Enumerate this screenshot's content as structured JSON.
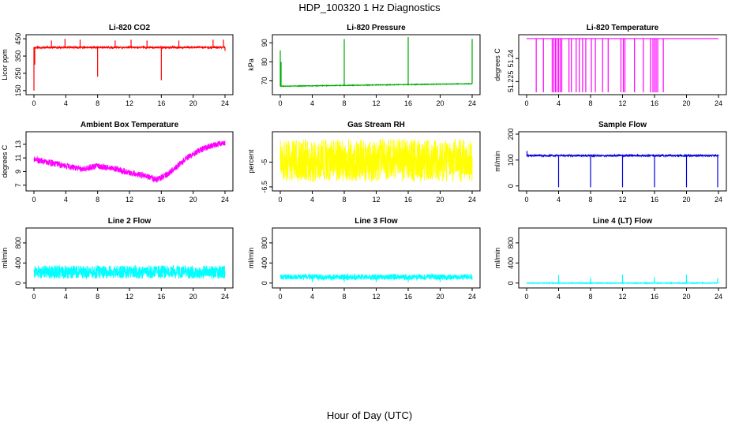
{
  "figure": {
    "title": "HDP_100320  1 Hz Diagnostics",
    "xlabel": "Hour of Day (UTC)"
  },
  "chart_data": [
    {
      "type": "line",
      "title": "Li-820 CO2",
      "ylabel": "Licor ppm",
      "color": "#ff0000",
      "xlim": [
        0,
        24
      ],
      "ylim": [
        140,
        460
      ],
      "xticks": [
        0,
        4,
        8,
        12,
        16,
        20,
        24
      ],
      "yticks": [
        150,
        250,
        350,
        450
      ],
      "baseline": 400,
      "noise": 10,
      "trend": [],
      "x": [
        0,
        0.1,
        0.2,
        2.2,
        3.9,
        5.8,
        8.0,
        10.2,
        12.2,
        14.2,
        16.0,
        18.2,
        22.5,
        23.8,
        24.0
      ],
      "y": [
        150,
        300,
        400,
        440,
        450,
        445,
        230,
        440,
        445,
        440,
        210,
        440,
        445,
        445,
        380
      ]
    },
    {
      "type": "line",
      "title": "Li-820 Pressure",
      "ylabel": "kPa",
      "color": "#00aa00",
      "xlim": [
        0,
        24
      ],
      "ylim": [
        64,
        93
      ],
      "xticks": [
        0,
        4,
        8,
        12,
        16,
        20,
        24
      ],
      "yticks": [
        70,
        80,
        90
      ],
      "baseline": 67.5,
      "noise": 0.3,
      "trend": [
        [
          0,
          67.2
        ],
        [
          24,
          68.5
        ]
      ],
      "x": [
        0,
        0.1,
        8.0,
        16.0,
        24.0
      ],
      "y": [
        86,
        80,
        92,
        93,
        92
      ]
    },
    {
      "type": "line",
      "title": "Li-820 Temperature",
      "ylabel": "degrees C",
      "color": "#ff00ff",
      "xlim": [
        0,
        24
      ],
      "ylim": [
        51.218,
        51.254
      ],
      "xticks": [
        0,
        4,
        8,
        12,
        16,
        20,
        24
      ],
      "yticks": [
        51.225,
        51.24
      ],
      "baseline": 51.253,
      "noise": 0,
      "trend": [],
      "x": [
        1.2,
        2.1,
        3.2,
        3.4,
        3.6,
        3.8,
        4.0,
        4.2,
        4.4,
        5.3,
        5.6,
        6.2,
        6.6,
        7.0,
        7.4,
        8.1,
        8.6,
        9.5,
        10.2,
        11.8,
        12.1,
        12.3,
        13.5,
        14.6,
        15.5,
        15.8,
        16.0,
        16.2,
        16.4,
        17.1
      ],
      "y": [
        51.218,
        51.218,
        51.218,
        51.218,
        51.218,
        51.218,
        51.218,
        51.218,
        51.218,
        51.218,
        51.218,
        51.218,
        51.218,
        51.218,
        51.218,
        51.218,
        51.218,
        51.218,
        51.218,
        51.218,
        51.218,
        51.218,
        51.218,
        51.218,
        51.218,
        51.218,
        51.218,
        51.218,
        51.218,
        51.218
      ]
    },
    {
      "type": "line",
      "title": "Ambient Box Temperature",
      "ylabel": "degrees C",
      "color": "#ff00ff",
      "xlim": [
        0,
        24
      ],
      "ylim": [
        6.5,
        14.5
      ],
      "xticks": [
        0,
        4,
        8,
        12,
        16,
        20,
        24
      ],
      "yticks": [
        7,
        9,
        11,
        13
      ],
      "baseline": 0,
      "noise": 0.9,
      "trend": [
        [
          0,
          10.8
        ],
        [
          2,
          10.3
        ],
        [
          4,
          9.8
        ],
        [
          6,
          9.4
        ],
        [
          8,
          9.8
        ],
        [
          10,
          9.5
        ],
        [
          12,
          8.8
        ],
        [
          14,
          8.4
        ],
        [
          15.5,
          7.8
        ],
        [
          17,
          8.8
        ],
        [
          19,
          10.8
        ],
        [
          21,
          12.3
        ],
        [
          23,
          13.0
        ],
        [
          24,
          13.2
        ]
      ],
      "x": [],
      "y": []
    },
    {
      "type": "line",
      "title": "Gas Stream RH",
      "ylabel": "percent",
      "color": "#ffff00",
      "xlim": [
        0,
        24
      ],
      "ylim": [
        -6.6,
        -3.3
      ],
      "xticks": [
        0,
        4,
        8,
        12,
        16,
        20,
        24
      ],
      "yticks": [
        -6.5,
        -5.0
      ],
      "baseline": -4.9,
      "noise": 2.6,
      "trend": [],
      "x": [],
      "y": []
    },
    {
      "type": "line",
      "title": "Sample Flow",
      "ylabel": "ml/min",
      "color": "#0000dd",
      "xlim": [
        0,
        24
      ],
      "ylim": [
        -10,
        200
      ],
      "xticks": [
        0,
        4,
        8,
        12,
        16,
        20,
        24
      ],
      "yticks": [
        0,
        100,
        200
      ],
      "baseline": 117,
      "noise": 6,
      "trend": [],
      "x": [
        0.05,
        4.0,
        8.0,
        12.0,
        16.0,
        20.0,
        23.9
      ],
      "y": [
        135,
        -5,
        -5,
        -5,
        -5,
        -5,
        -5
      ]
    },
    {
      "type": "line",
      "title": "Line 2 Flow",
      "ylabel": "ml/min",
      "color": "#00ffff",
      "xlim": [
        0,
        24
      ],
      "ylim": [
        -50,
        1050
      ],
      "xticks": [
        0,
        4,
        8,
        12,
        16,
        20,
        24
      ],
      "yticks": [
        0,
        400,
        800
      ],
      "baseline": 220,
      "noise": 260,
      "trend": [],
      "x": [
        3.9,
        7.9,
        11.9,
        15.9,
        19.9
      ],
      "y": [
        100,
        100,
        100,
        100,
        100
      ]
    },
    {
      "type": "line",
      "title": "Line 3 Flow",
      "ylabel": "ml/min",
      "color": "#00ffff",
      "xlim": [
        0,
        24
      ],
      "ylim": [
        -50,
        1050
      ],
      "xticks": [
        0,
        4,
        8,
        12,
        16,
        20,
        24
      ],
      "yticks": [
        0,
        400,
        800
      ],
      "baseline": 120,
      "noise": 110,
      "trend": [],
      "x": [
        4.0,
        8.0,
        12.0,
        16.0,
        20.0
      ],
      "y": [
        20,
        20,
        20,
        20,
        20
      ]
    },
    {
      "type": "line",
      "title": "Line 4 (LT) Flow",
      "ylabel": "ml/min",
      "color": "#00ffff",
      "xlim": [
        0,
        24
      ],
      "ylim": [
        -50,
        1050
      ],
      "xticks": [
        0,
        4,
        8,
        12,
        16,
        20,
        24
      ],
      "yticks": [
        0,
        400,
        800
      ],
      "baseline": 0,
      "noise": 12,
      "trend": [],
      "x": [
        4.0,
        8.0,
        12.0,
        16.0,
        20.0,
        23.9
      ],
      "y": [
        160,
        110,
        170,
        120,
        170,
        100
      ]
    }
  ]
}
